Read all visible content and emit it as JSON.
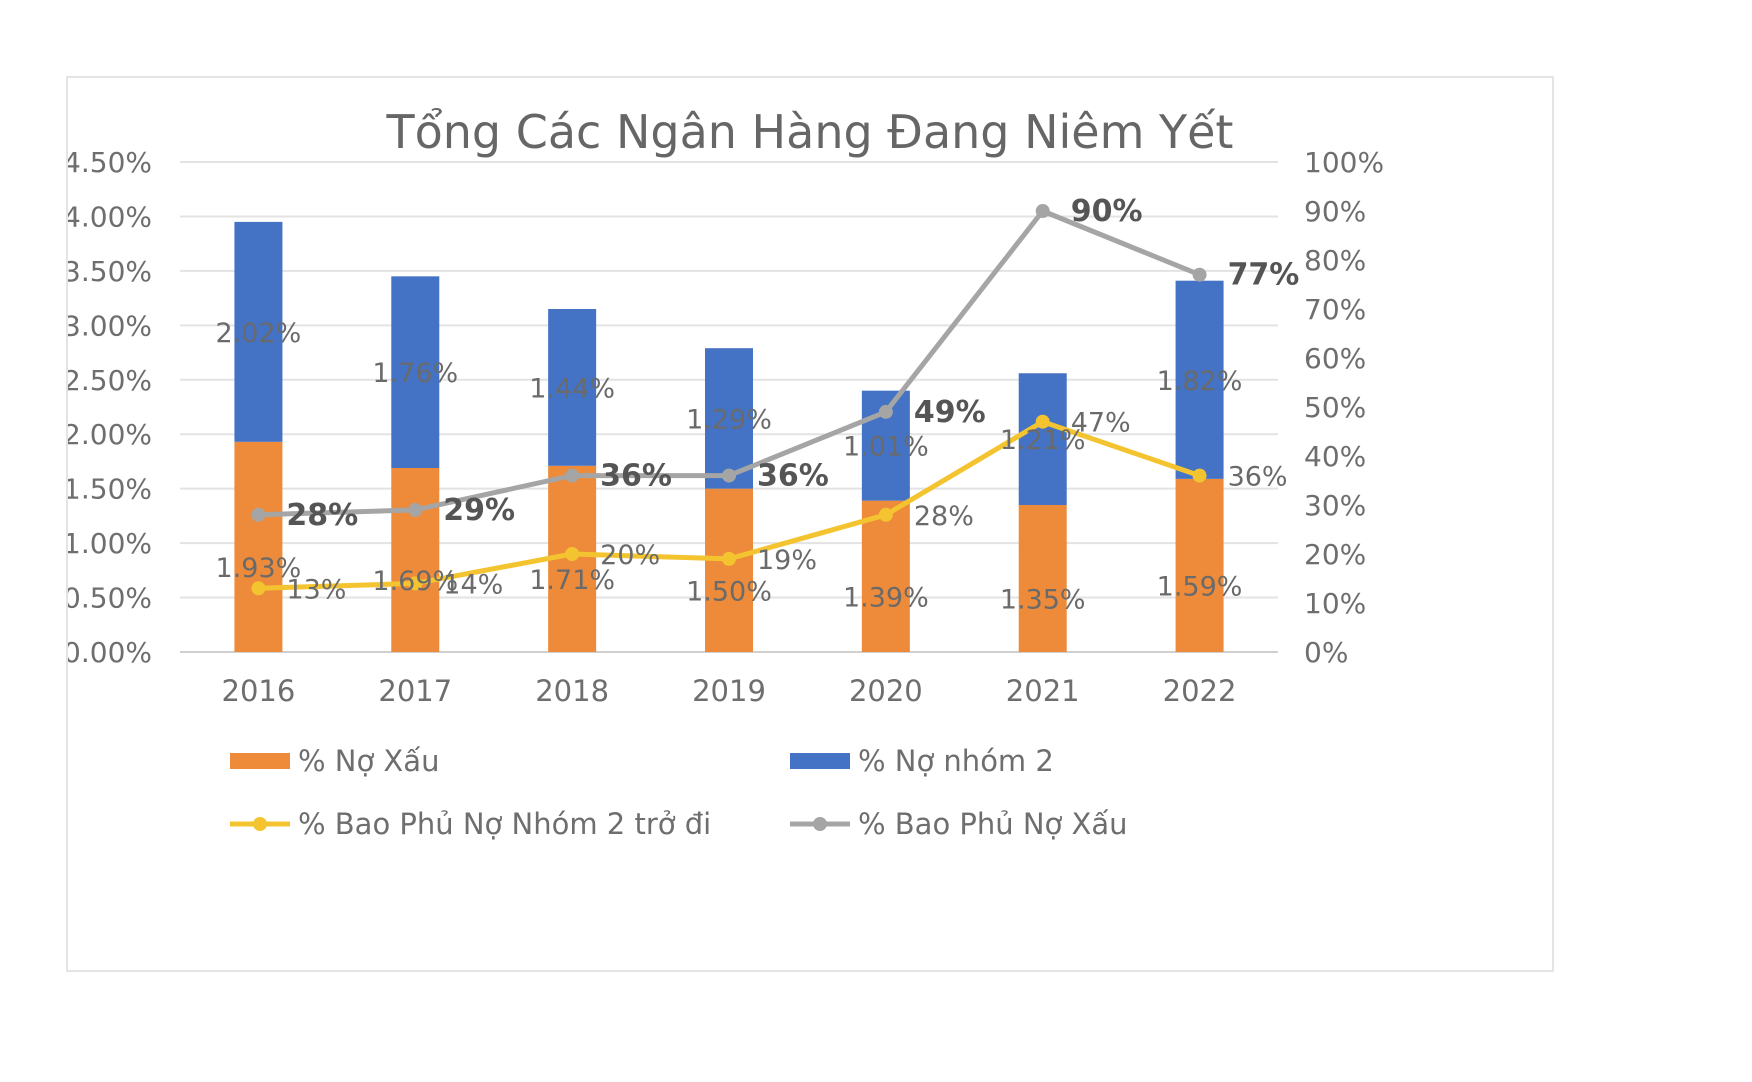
{
  "chart_data": {
    "type": "bar",
    "title": "Tổng Các Ngân Hàng Đang Niêm Yết",
    "categories": [
      "2016",
      "2017",
      "2018",
      "2019",
      "2020",
      "2021",
      "2022"
    ],
    "bar_series": [
      {
        "name": "% Nợ Xấu",
        "color": "#ED8B3A",
        "values": [
          1.93,
          1.69,
          1.71,
          1.5,
          1.39,
          1.35,
          1.59
        ],
        "labels": [
          "1.93%",
          "1.69%",
          "1.71%",
          "1.50%",
          "1.39%",
          "1.35%",
          "1.59%"
        ]
      },
      {
        "name": "% Nợ nhóm 2",
        "color": "#4472C4",
        "values": [
          2.02,
          1.76,
          1.44,
          1.29,
          1.01,
          1.21,
          1.82
        ],
        "labels": [
          "2.02%",
          "1.76%",
          "1.44%",
          "1.29%",
          "1.01%",
          "1.21%",
          "1.82%"
        ]
      }
    ],
    "line_series": [
      {
        "name": "% Bao Phủ Nợ Nhóm 2 trở đi",
        "color": "#F4C430",
        "axis": "right",
        "values": [
          13,
          14,
          20,
          19,
          28,
          47,
          36
        ],
        "labels": [
          "13%",
          "14%",
          "20%",
          "19%",
          "28%",
          "47%",
          "36%"
        ]
      },
      {
        "name": "% Bao Phủ Nợ Xấu",
        "color": "#A5A5A5",
        "axis": "right",
        "values": [
          28,
          29,
          36,
          36,
          49,
          90,
          77
        ],
        "labels": [
          "28%",
          "29%",
          "36%",
          "36%",
          "49%",
          "90%",
          "77%"
        ]
      }
    ],
    "left_axis": {
      "ylim": [
        0,
        4.5
      ],
      "ticks": [
        "0.00%",
        "0.50%",
        "1.00%",
        "1.50%",
        "2.00%",
        "2.50%",
        "3.00%",
        "3.50%",
        "4.00%",
        "4.50%"
      ]
    },
    "right_axis": {
      "ylim": [
        0,
        100
      ],
      "ticks": [
        "0%",
        "10%",
        "20%",
        "30%",
        "40%",
        "50%",
        "60%",
        "70%",
        "80%",
        "90%",
        "100%"
      ]
    },
    "grid": true,
    "legend_position": "bottom",
    "legend": [
      "% Nợ Xấu",
      "% Nợ nhóm 2",
      "% Bao Phủ Nợ Nhóm 2 trở đi",
      "% Bao Phủ Nợ Xấu"
    ]
  }
}
